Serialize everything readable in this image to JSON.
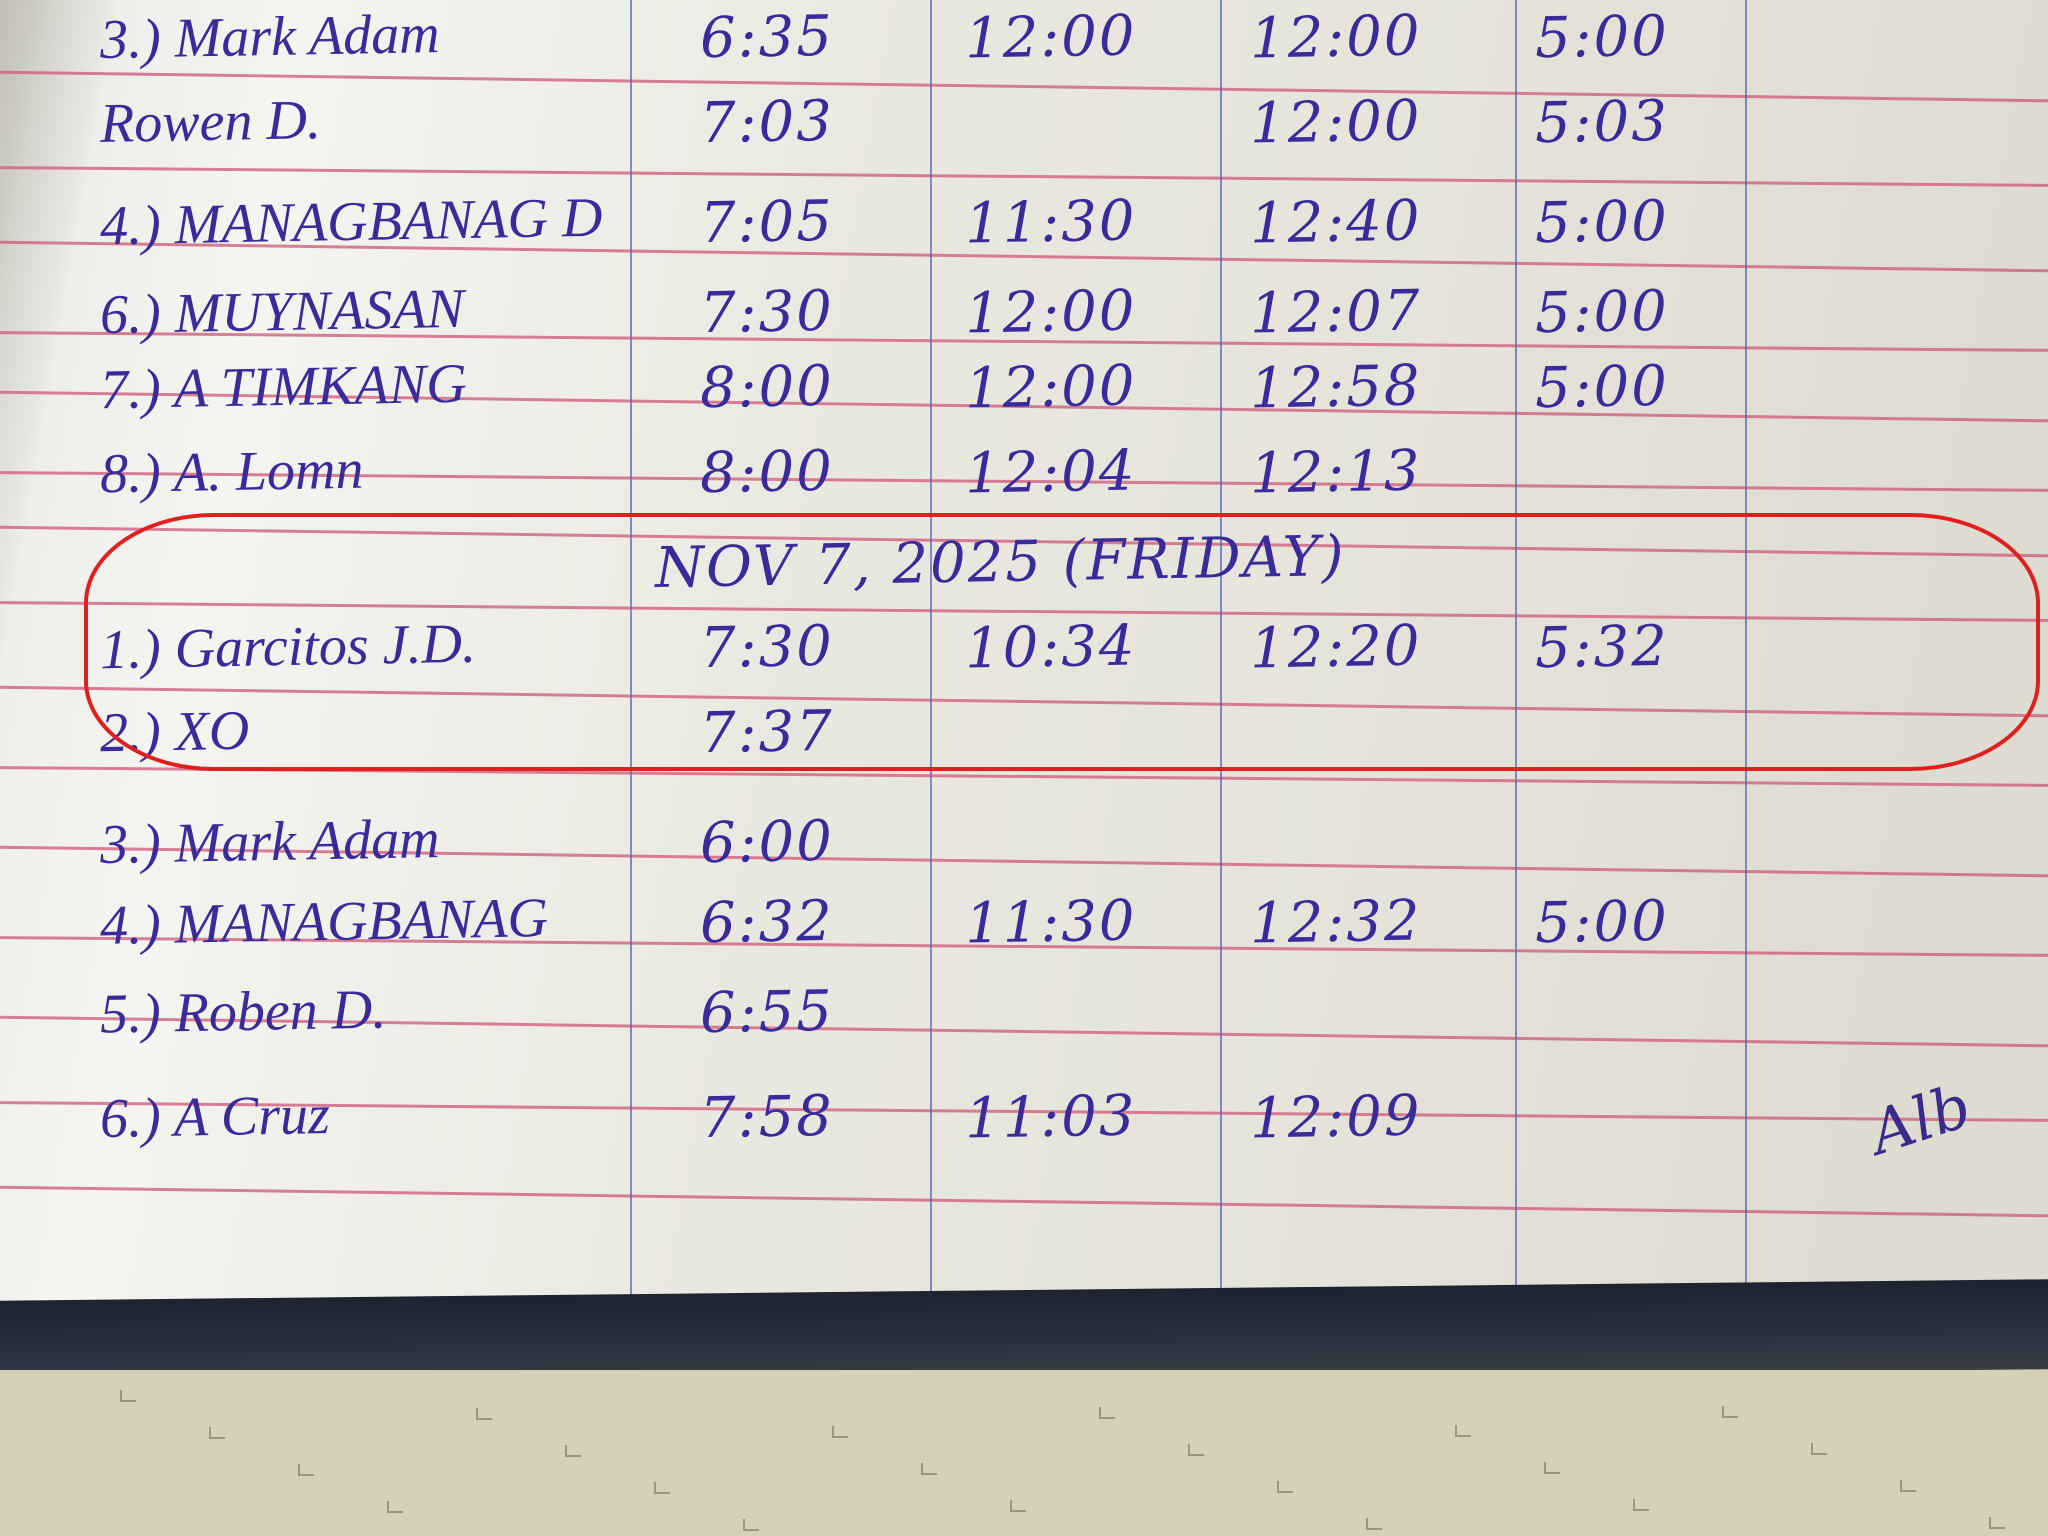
{
  "logbook": {
    "rows": [
      {
        "name": "3.) Mark Adam",
        "in_am": "6:35",
        "out_am": "12:00",
        "in_pm": "12:00",
        "out_pm": "5:00"
      },
      {
        "name": "Rowen D.",
        "in_am": "7:03",
        "out_am": "",
        "in_pm": "12:00",
        "out_pm": "5:03"
      },
      {
        "name": "4.) MANAGBANAG D",
        "in_am": "7:05",
        "out_am": "11:30",
        "in_pm": "12:40",
        "out_pm": "5:00"
      },
      {
        "name": "6.) MUYNASAN",
        "in_am": "7:30",
        "out_am": "12:00",
        "in_pm": "12:07",
        "out_pm": "5:00"
      },
      {
        "name": "7.) A TIMKANG",
        "in_am": "8:00",
        "out_am": "12:00",
        "in_pm": "12:58",
        "out_pm": "5:00"
      },
      {
        "name": "8.) A. Lomn",
        "in_am": "8:00",
        "out_am": "12:04",
        "in_pm": "12:13",
        "out_pm": ""
      }
    ],
    "date_line": "NOV 7, 2025 (FRIDAY)",
    "highlighted_rows": [
      {
        "name": "1.) Garcitos J.D.",
        "in_am": "7:30",
        "out_am": "10:34",
        "in_pm": "12:20",
        "out_pm": "5:32"
      },
      {
        "name": "2.) XO",
        "in_am": "7:37",
        "out_am": "",
        "in_pm": "",
        "out_pm": ""
      }
    ],
    "rows_after": [
      {
        "name": "3.) Mark Adam",
        "in_am": "6:00",
        "out_am": "",
        "in_pm": "",
        "out_pm": ""
      },
      {
        "name": "4.) MANAGBANAG",
        "in_am": "6:32",
        "out_am": "11:30",
        "in_pm": "12:32",
        "out_pm": "5:00"
      },
      {
        "name": "5.) Roben D.",
        "in_am": "6:55",
        "out_am": "",
        "in_pm": "",
        "out_pm": ""
      },
      {
        "name": "6.) A Cruz",
        "in_am": "7:58",
        "out_am": "11:03",
        "in_pm": "12:09",
        "out_pm": ""
      }
    ],
    "signature_text": "Alb",
    "colors": {
      "ink": "#3a2a9a",
      "rule": "#d0607e",
      "column_line": "#5a6ab5",
      "highlight": "#e02020"
    }
  }
}
